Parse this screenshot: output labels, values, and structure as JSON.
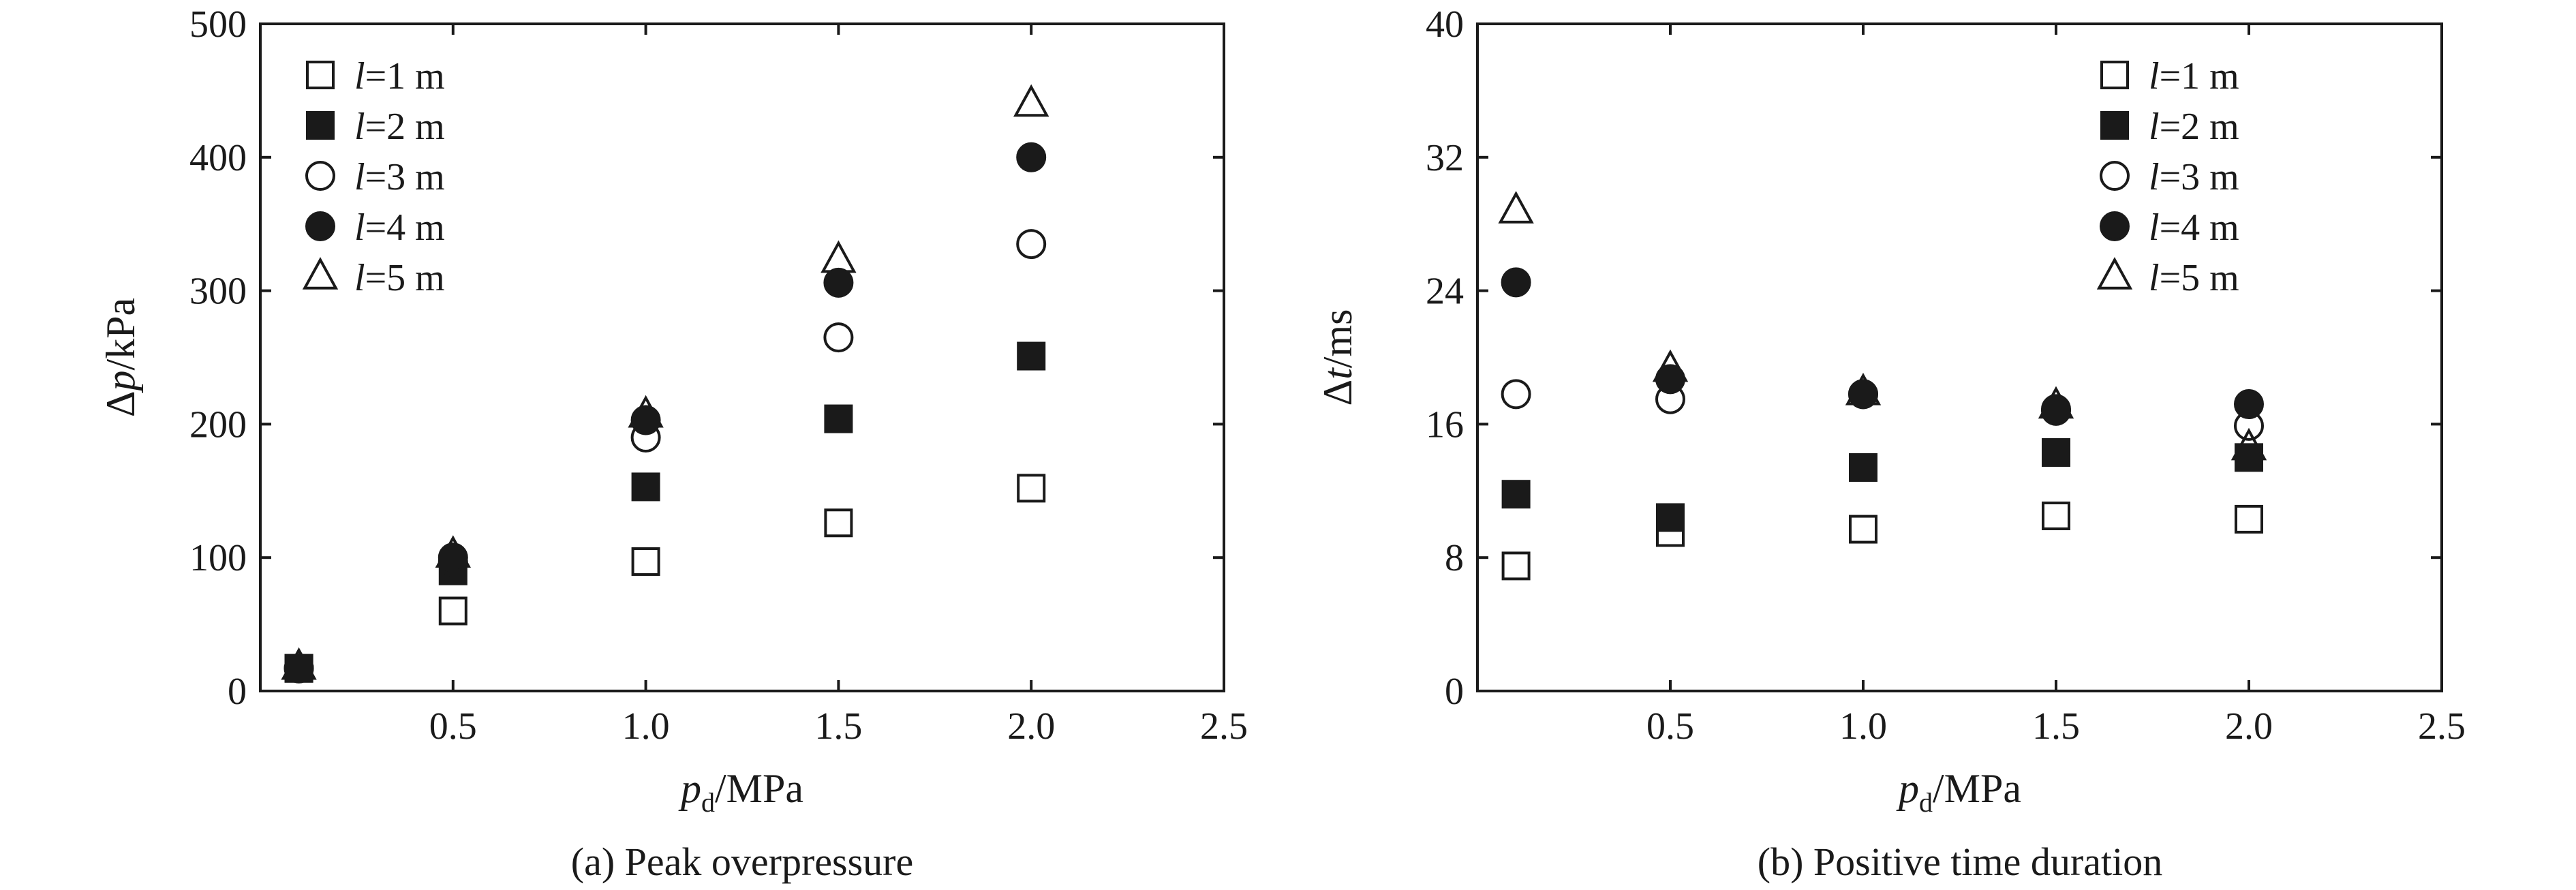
{
  "chart_data": [
    {
      "type": "scatter",
      "caption": "(a) Peak overpressure",
      "xlabel": {
        "base": "p",
        "sub": "d",
        "unit": "/MPa"
      },
      "ylabel": {
        "prefix": "Δ",
        "var": "p",
        "unit": "/kPa"
      },
      "xlim": [
        0,
        2.5
      ],
      "ylim": [
        0,
        500
      ],
      "xticks": [
        {
          "v": 0.5,
          "label": "0.5"
        },
        {
          "v": 1.0,
          "label": "1.0"
        },
        {
          "v": 1.5,
          "label": "1.5"
        },
        {
          "v": 2.0,
          "label": "2.0"
        },
        {
          "v": 2.5,
          "label": "2.5"
        }
      ],
      "yticks": [
        {
          "v": 0,
          "label": "0"
        },
        {
          "v": 100,
          "label": "100"
        },
        {
          "v": 200,
          "label": "200"
        },
        {
          "v": 300,
          "label": "300"
        },
        {
          "v": 400,
          "label": "400"
        },
        {
          "v": 500,
          "label": "500"
        }
      ],
      "grid": false,
      "legend_position": "top-left",
      "x": [
        0.1,
        0.5,
        1.0,
        1.5,
        2.0
      ],
      "series": [
        {
          "name": "l=1 m",
          "marker": "square-open",
          "values": [
            17,
            60,
            97,
            126,
            152
          ]
        },
        {
          "name": "l=2 m",
          "marker": "square-filled",
          "values": [
            17,
            90,
            153,
            204,
            251
          ]
        },
        {
          "name": "l=3 m",
          "marker": "circle-open",
          "values": [
            17,
            97,
            190,
            265,
            335
          ]
        },
        {
          "name": "l=4 m",
          "marker": "circle-filled",
          "values": [
            17,
            100,
            203,
            306,
            400
          ]
        },
        {
          "name": "l=5 m",
          "marker": "triangle-open",
          "values": [
            18,
            102,
            207,
            323,
            440
          ]
        }
      ]
    },
    {
      "type": "scatter",
      "caption": "(b) Positive time duration",
      "xlabel": {
        "base": "p",
        "sub": "d",
        "unit": "/MPa"
      },
      "ylabel": {
        "prefix": "Δ",
        "var": "t",
        "unit": "/ms"
      },
      "xlim": [
        0,
        2.5
      ],
      "ylim": [
        0,
        40
      ],
      "xticks": [
        {
          "v": 0.5,
          "label": "0.5"
        },
        {
          "v": 1.0,
          "label": "1.0"
        },
        {
          "v": 1.5,
          "label": "1.5"
        },
        {
          "v": 2.0,
          "label": "2.0"
        },
        {
          "v": 2.5,
          "label": "2.5"
        }
      ],
      "yticks": [
        {
          "v": 0,
          "label": "0"
        },
        {
          "v": 8,
          "label": "8"
        },
        {
          "v": 16,
          "label": "16"
        },
        {
          "v": 24,
          "label": "24"
        },
        {
          "v": 32,
          "label": "32"
        },
        {
          "v": 40,
          "label": "40"
        }
      ],
      "grid": false,
      "legend_position": "top-right",
      "x": [
        0.1,
        0.5,
        1.0,
        1.5,
        2.0
      ],
      "series": [
        {
          "name": "l=1 m",
          "marker": "square-open",
          "values": [
            7.5,
            9.5,
            9.7,
            10.5,
            10.3
          ]
        },
        {
          "name": "l=2 m",
          "marker": "square-filled",
          "values": [
            11.8,
            10.4,
            13.4,
            14.3,
            14.0
          ]
        },
        {
          "name": "l=3 m",
          "marker": "circle-open",
          "values": [
            17.8,
            17.5,
            17.8,
            16.8,
            15.9
          ]
        },
        {
          "name": "l=4 m",
          "marker": "circle-filled",
          "values": [
            24.5,
            18.7,
            17.8,
            16.9,
            17.2
          ]
        },
        {
          "name": "l=5 m",
          "marker": "triangle-open",
          "values": [
            28.8,
            19.3,
            17.9,
            17.1,
            14.6
          ]
        }
      ]
    }
  ]
}
